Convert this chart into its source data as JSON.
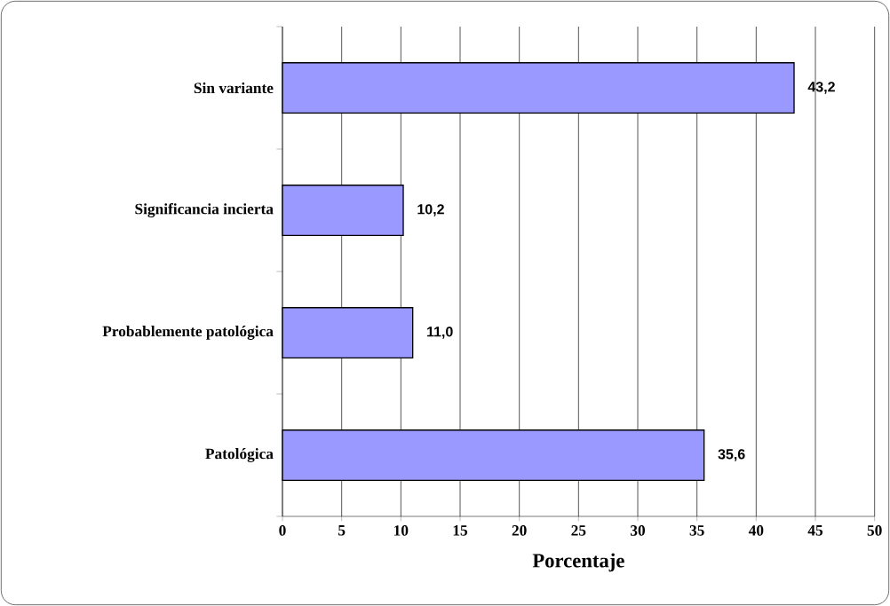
{
  "chart_data": {
    "type": "bar",
    "orientation": "horizontal",
    "xlabel": "Porcentaje",
    "categories": [
      "Sin variante",
      "Significancia incierta",
      "Probablemente patológica",
      "Patológica"
    ],
    "values": [
      43.2,
      10.2,
      11.0,
      35.6
    ],
    "value_labels": [
      "43,2",
      "10,2",
      "11,0",
      "35,6"
    ],
    "color": "#9999ff",
    "xlim": [
      0,
      50
    ],
    "xticks": [
      0,
      5,
      10,
      15,
      20,
      25,
      30,
      35,
      40,
      45,
      50
    ],
    "grid": "x"
  }
}
